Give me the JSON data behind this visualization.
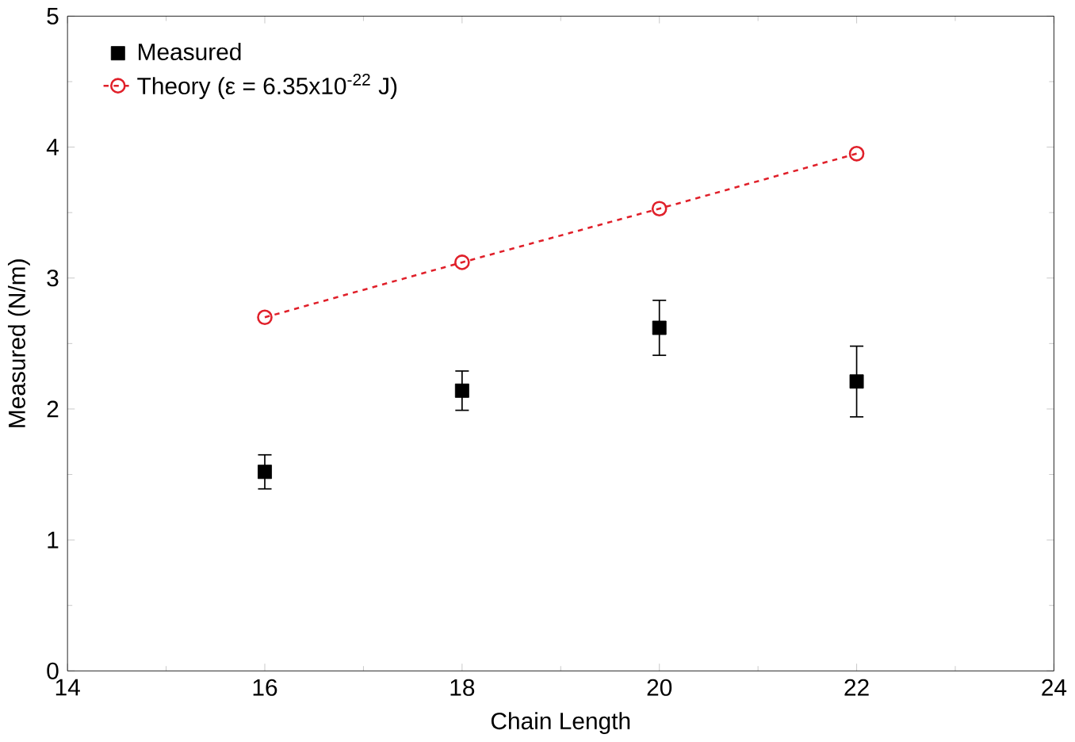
{
  "chart_data": {
    "type": "scatter",
    "xlabel": "Chain Length",
    "ylabel": "Measured (N/m)",
    "x": [
      16,
      18,
      20,
      22
    ],
    "series": [
      {
        "name": "Measured",
        "color": "#000000",
        "marker": "square",
        "values": [
          1.52,
          2.14,
          2.62,
          2.21
        ],
        "errors": [
          0.13,
          0.15,
          0.21,
          0.27
        ]
      },
      {
        "name": "Theory (ε = 6.35x10$^{-22}$ J)",
        "type": "line",
        "color": "#e0202a",
        "marker": "circle",
        "line_style": "dashed",
        "values": [
          2.7,
          3.12,
          3.53,
          3.95
        ]
      }
    ],
    "xlim": [
      14,
      24
    ],
    "xticks": [
      14,
      16,
      18,
      20,
      22,
      24
    ],
    "ylim": [
      0,
      5
    ],
    "yticks": [
      0,
      1,
      2,
      3,
      4,
      5
    ],
    "legend": "top left",
    "grid": false
  }
}
